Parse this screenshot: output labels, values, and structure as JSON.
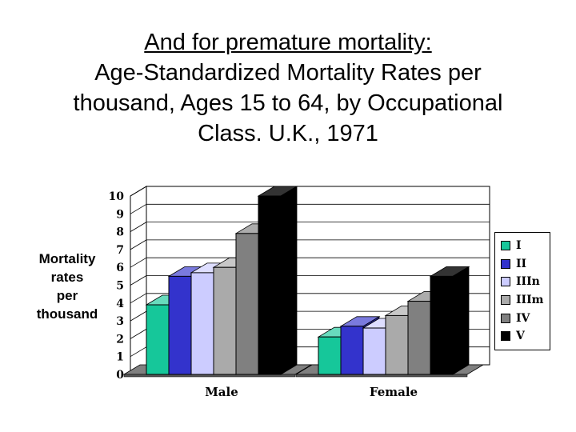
{
  "title_lines": [
    "And for premature  mortality:",
    "Age-Standardized Mortality Rates per",
    "thousand, Ages 15 to 64, by Occupational",
    "Class.  U.K., 1971"
  ],
  "ylabel_lines": [
    "Mortality",
    "rates",
    "per",
    "thousand"
  ],
  "colors": {
    "I": "#16c79a",
    "II": "#3333cc",
    "IIIn": "#ccccff",
    "IIIm": "#aaaaaa",
    "IV": "#808080",
    "V": "#000000"
  },
  "chart_data": {
    "type": "bar",
    "title": "And for premature  mortality: Age-Standardized Mortality Rates per thousand, Ages 15 to 64, by Occupational Class.  U.K., 1971",
    "categories": [
      "Male",
      "Female"
    ],
    "series": [
      {
        "name": "I",
        "values": [
          3.9,
          2.1
        ]
      },
      {
        "name": "II",
        "values": [
          5.5,
          2.7
        ]
      },
      {
        "name": "IIIn",
        "values": [
          5.7,
          2.6
        ]
      },
      {
        "name": "IIIm",
        "values": [
          6.0,
          3.3
        ]
      },
      {
        "name": "IV",
        "values": [
          7.9,
          4.1
        ]
      },
      {
        "name": "V",
        "values": [
          10.0,
          5.5
        ]
      }
    ],
    "yticks": [
      "0",
      "1",
      "2",
      "3",
      "4",
      "5",
      "6",
      "7",
      "8",
      "9",
      "10"
    ],
    "ylim": [
      0,
      10
    ],
    "xlabel": "",
    "ylabel": "Mortality rates per thousand",
    "legend_position": "right",
    "grid": true,
    "style": "3d"
  }
}
